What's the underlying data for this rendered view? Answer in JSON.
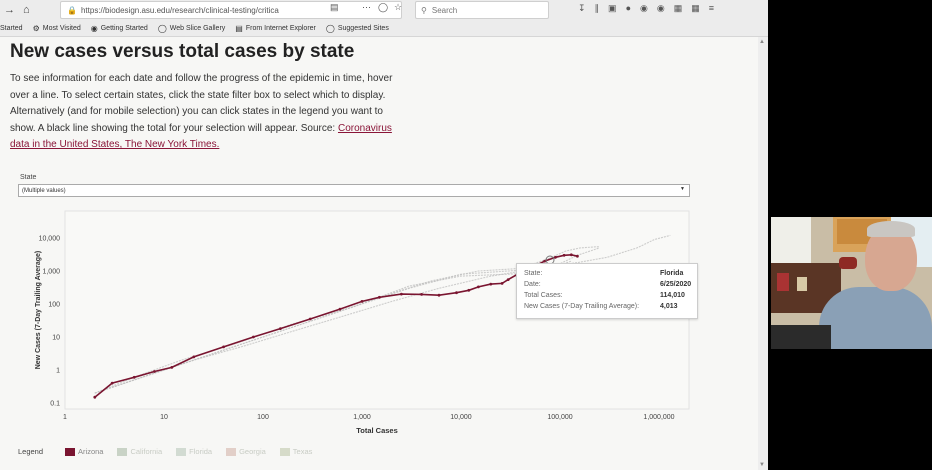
{
  "browser": {
    "url": "https://biodesign.asu.edu/research/clinical-testing/critica",
    "search_placeholder": "Search",
    "bookmarks": [
      {
        "label": "Started",
        "icon": ""
      },
      {
        "label": "Most Visited",
        "icon": "gear-icon"
      },
      {
        "label": "Getting Started",
        "icon": "firefox-icon"
      },
      {
        "label": "Web Slice Gallery",
        "icon": "globe-icon"
      },
      {
        "label": "From Internet Explorer",
        "icon": "folder-icon"
      },
      {
        "label": "Suggested Sites",
        "icon": "globe-icon"
      }
    ]
  },
  "page": {
    "title": "New cases versus total cases by state",
    "description": "To see information for each date and follow the progress of the epidemic in time, hover over a line. To select certain states, click the state filter box to select which to display. Alternatively (and for mobile selection) you can click states in the legend you want to show. A black line showing the total for your selection will appear. Source:",
    "source_link": "Coronavirus data in the United States, The New York Times.",
    "filter": {
      "label": "State",
      "value": "(Multiple values)"
    }
  },
  "tooltip": {
    "rows": [
      {
        "label": "State:",
        "value": "Florida"
      },
      {
        "label": "Date:",
        "value": "6/25/2020"
      },
      {
        "label": "Total Cases:",
        "value": "114,010"
      },
      {
        "label": "New Cases (7-Day Trailing Average):",
        "value": "4,013"
      }
    ]
  },
  "legend": {
    "title": "Legend",
    "items": [
      {
        "label": "Arizona",
        "color": "#7a1530",
        "active": true
      },
      {
        "label": "California",
        "color": "#c9d3c6",
        "active": false
      },
      {
        "label": "Florida",
        "color": "#d2dbd2",
        "active": false
      },
      {
        "label": "Georgia",
        "color": "#e2cfc8",
        "active": false
      },
      {
        "label": "Texas",
        "color": "#d6dbc9",
        "active": false
      }
    ]
  },
  "chart_data": {
    "type": "line",
    "xlabel": "Total Cases",
    "ylabel": "New Cases (7-Day Trailing Average)",
    "x_scale": "log",
    "y_scale": "log",
    "xlim": [
      1,
      1000000
    ],
    "ylim": [
      0.1,
      10000
    ],
    "x_ticks": [
      "1",
      "10",
      "100",
      "1,000",
      "10,000",
      "100,000",
      "1,000,000"
    ],
    "y_ticks": [
      "0.1",
      "1",
      "10",
      "100",
      "1,000",
      "10,000"
    ],
    "grid": false,
    "series": [
      {
        "name": "Arizona",
        "color": "#7a1530",
        "highlight": true,
        "x": [
          2,
          3,
          5,
          8,
          12,
          20,
          40,
          80,
          150,
          300,
          600,
          1000,
          1500,
          2500,
          4000,
          6000,
          9000,
          12000,
          15000,
          20000,
          26000,
          30000,
          40000,
          55000,
          70000,
          90000,
          110000,
          130000,
          150000
        ],
        "y": [
          0.15,
          0.4,
          0.6,
          0.9,
          1.2,
          2.5,
          5,
          10,
          18,
          35,
          70,
          120,
          160,
          200,
          195,
          185,
          220,
          260,
          330,
          400,
          420,
          550,
          900,
          1400,
          2000,
          2600,
          3000,
          3100,
          2800
        ]
      },
      {
        "name": "California",
        "color": "#c9d3c6",
        "highlight": false,
        "x": [
          3,
          8,
          20,
          60,
          200,
          600,
          2000,
          6000,
          20000,
          60000,
          150000,
          300000,
          600000,
          900000,
          1300000
        ],
        "y": [
          0.3,
          0.8,
          2,
          5,
          15,
          40,
          120,
          300,
          700,
          1200,
          1800,
          2600,
          5000,
          9000,
          12000
        ]
      },
      {
        "name": "Florida",
        "color": "#d2dbd2",
        "highlight": false,
        "x": [
          2,
          5,
          15,
          50,
          150,
          500,
          1500,
          5000,
          15000,
          40000,
          80000,
          114010,
          160000,
          250000
        ],
        "y": [
          0.2,
          0.5,
          1.5,
          5,
          15,
          50,
          160,
          500,
          1000,
          1200,
          2500,
          4013,
          5000,
          5500
        ]
      },
      {
        "name": "Georgia",
        "color": "#e2cfc8",
        "highlight": false,
        "x": [
          2,
          5,
          15,
          50,
          200,
          800,
          3000,
          10000,
          30000,
          60000,
          100000,
          130000
        ],
        "y": [
          0.2,
          0.6,
          2,
          6,
          25,
          80,
          350,
          700,
          800,
          900,
          1500,
          2000
        ]
      },
      {
        "name": "Texas",
        "color": "#d6dbc9",
        "highlight": false,
        "x": [
          2,
          6,
          20,
          60,
          200,
          800,
          3000,
          10000,
          30000,
          80000,
          150000,
          250000
        ],
        "y": [
          0.2,
          0.6,
          2,
          6,
          20,
          80,
          300,
          800,
          1000,
          1200,
          3000,
          5000
        ]
      }
    ]
  }
}
